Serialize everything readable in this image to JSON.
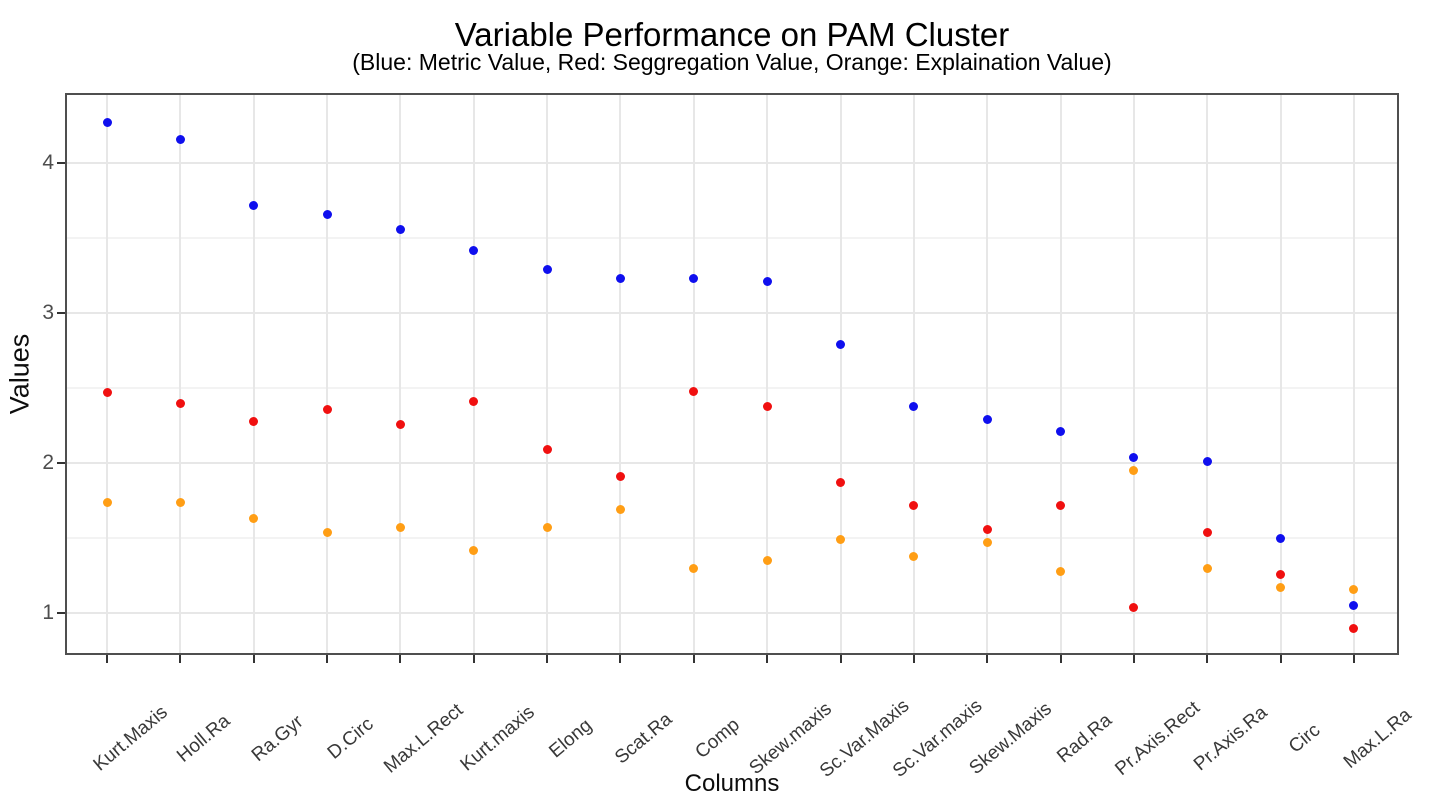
{
  "header": {
    "title": "Variable Performance on PAM Cluster",
    "subtitle": "(Blue: Metric Value, Red: Seggregation Value, Orange: Explaination Value)"
  },
  "axes": {
    "x_title": "Columns",
    "y_title": "Values",
    "y_tick_labels": [
      "4",
      "3",
      "2",
      "1"
    ],
    "x_label_rotation_deg": -40
  },
  "colors": {
    "metric_blue": "#0f0fee",
    "seggregation_red": "#f01010",
    "explaination_orange": "#ff9e15",
    "panel_border": "#4f4f4f",
    "grid_major": "#e7e7e7",
    "grid_minor": "#f3f3f3",
    "tick": "#333333",
    "tick_text": "#4d4d4d"
  },
  "chart_data": {
    "type": "scatter",
    "title": "Variable Performance on PAM Cluster",
    "subtitle": "(Blue: Metric Value, Red: Seggregation Value, Orange: Explaination Value)",
    "xlabel": "Columns",
    "ylabel": "Values",
    "ylim": [
      0.72,
      4.47
    ],
    "yticks": [
      1,
      2,
      3,
      4
    ],
    "minor_yticks": [
      1.5,
      2.5,
      3.5
    ],
    "grid": true,
    "legend_position": "encoded-in-subtitle",
    "categories": [
      "Kurt.Maxis",
      "Holl.Ra",
      "Ra.Gyr",
      "D.Circ",
      "Max.L.Rect",
      "Kurt.maxis",
      "Elong",
      "Scat.Ra",
      "Comp",
      "Skew.maxis",
      "Sc.Var.Maxis",
      "Sc.Var.maxis",
      "Skew.Maxis",
      "Rad.Ra",
      "Pr.Axis.Rect",
      "Pr.Axis.Ra",
      "Circ",
      "Max.L.Ra"
    ],
    "series": [
      {
        "name": "Metric Value",
        "color_name": "blue",
        "color": "#0f0fee",
        "values": [
          4.27,
          4.16,
          3.72,
          3.66,
          3.56,
          3.42,
          3.29,
          3.23,
          3.23,
          3.21,
          2.79,
          2.38,
          2.29,
          2.21,
          2.04,
          2.01,
          1.5,
          1.05
        ]
      },
      {
        "name": "Seggregation Value",
        "color_name": "red",
        "color": "#f01010",
        "values": [
          2.47,
          2.4,
          2.28,
          2.36,
          2.26,
          2.41,
          2.09,
          1.91,
          2.48,
          2.38,
          1.87,
          1.72,
          1.56,
          1.72,
          1.04,
          1.54,
          1.26,
          0.9
        ]
      },
      {
        "name": "Explaination Value",
        "color_name": "orange",
        "color": "#ff9e15",
        "values": [
          1.74,
          1.74,
          1.63,
          1.54,
          1.57,
          1.42,
          1.57,
          1.69,
          1.3,
          1.35,
          1.49,
          1.38,
          1.47,
          1.28,
          1.95,
          1.3,
          1.17,
          1.16
        ]
      }
    ]
  }
}
